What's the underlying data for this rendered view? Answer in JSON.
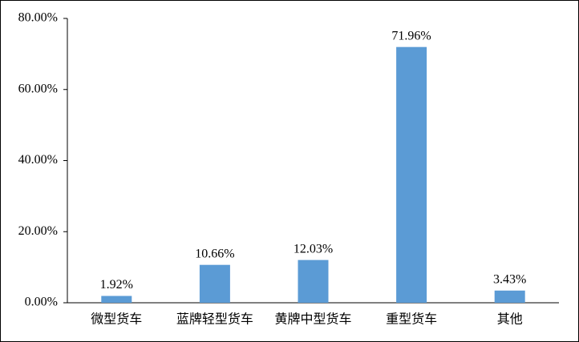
{
  "chart_data": {
    "type": "bar",
    "categories": [
      "微型货车",
      "蓝牌轻型货车",
      "黄牌中型货车",
      "重型货车",
      "其他"
    ],
    "values": [
      1.92,
      10.66,
      12.03,
      71.96,
      3.43
    ],
    "value_labels": [
      "1.92%",
      "10.66%",
      "12.03%",
      "71.96%",
      "3.43%"
    ],
    "color": "#5b9bd5",
    "ylim": [
      0,
      80
    ],
    "yticks": [
      {
        "value": 0,
        "label": "0.00%"
      },
      {
        "value": 20,
        "label": "20.00%"
      },
      {
        "value": 40,
        "label": "40.00%"
      },
      {
        "value": 60,
        "label": "60.00%"
      },
      {
        "value": 80,
        "label": "80.00%"
      }
    ],
    "grid": false
  }
}
